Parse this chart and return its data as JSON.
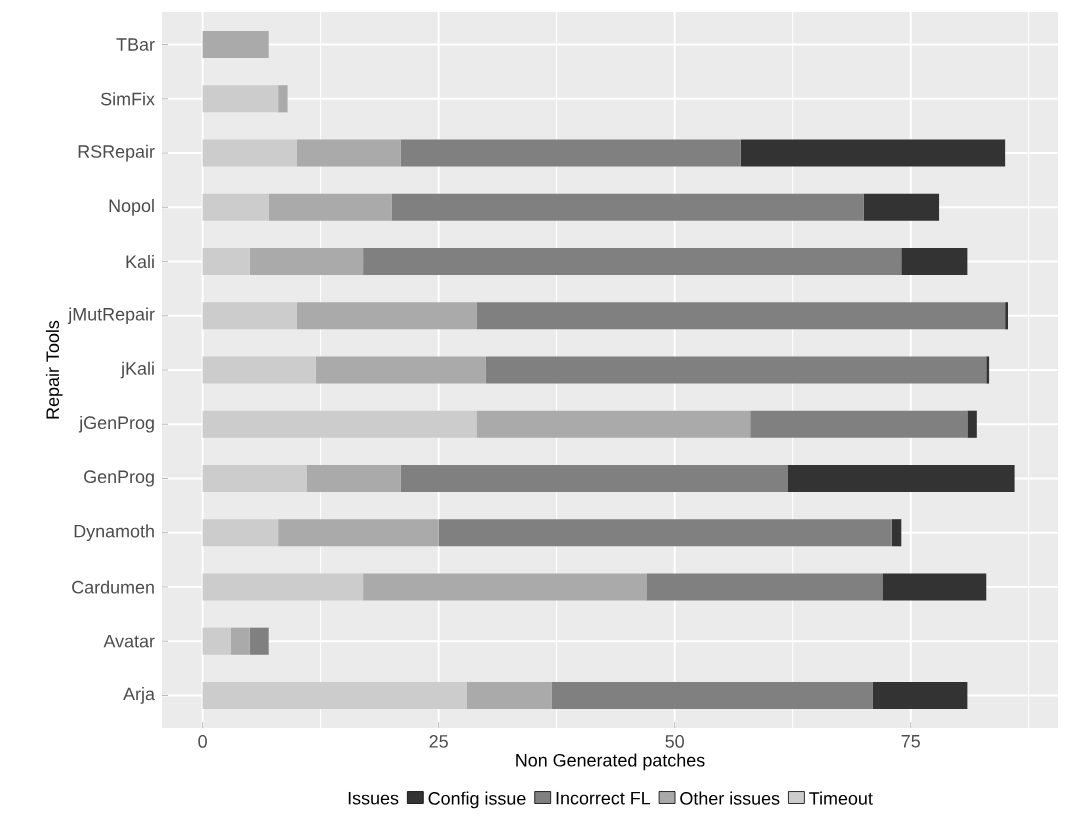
{
  "chart_data": {
    "type": "bar",
    "orientation": "horizontal",
    "stacked": true,
    "xlabel": "Non Generated patches",
    "ylabel": "Repair Tools",
    "legend_title": "Issues",
    "categories": [
      "TBar",
      "SimFix",
      "RSRepair",
      "Nopol",
      "Kali",
      "jMutRepair",
      "jKali",
      "jGenProg",
      "GenProg",
      "Dynamoth",
      "Cardumen",
      "Avatar",
      "Arja"
    ],
    "series": [
      {
        "name": "Timeout",
        "color": "#cccccc",
        "values": [
          0,
          8,
          10,
          7,
          5,
          10,
          12,
          29,
          11,
          8,
          17,
          3,
          28
        ]
      },
      {
        "name": "Other issues",
        "color": "#aaaaaa",
        "values": [
          7,
          1,
          11,
          13,
          12,
          19,
          18,
          29,
          10,
          17,
          30,
          2,
          9
        ]
      },
      {
        "name": "Incorrect FL",
        "color": "#808080",
        "values": [
          0,
          0,
          36,
          50,
          57,
          56,
          53,
          23,
          41,
          48,
          25,
          2,
          34
        ]
      },
      {
        "name": "Config issue",
        "color": "#333333",
        "values": [
          0,
          0,
          28,
          8,
          7,
          0.3,
          0.3,
          1,
          24,
          1,
          11,
          0,
          10
        ]
      }
    ],
    "xlim": [
      -4.3,
      90.6
    ],
    "xticks": [
      0,
      25,
      50,
      75
    ],
    "grid": true,
    "legend": "bottom"
  }
}
